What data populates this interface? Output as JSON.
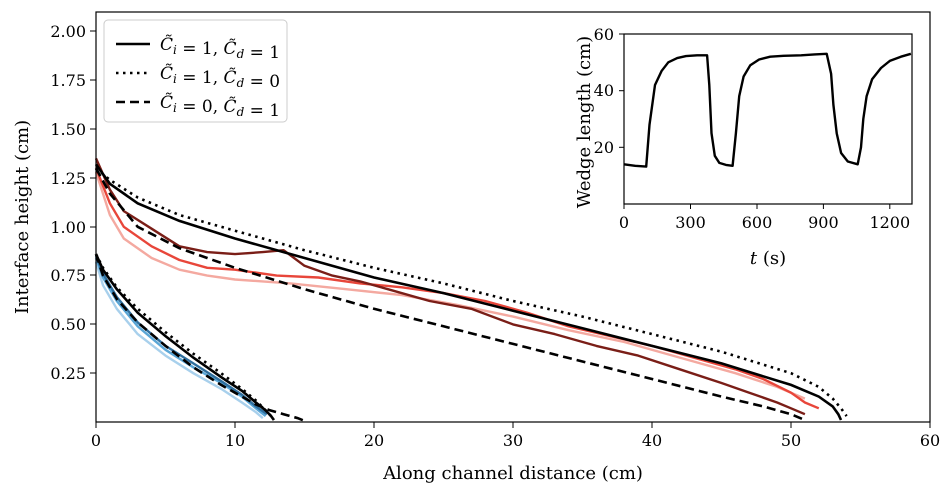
{
  "chart_data": [
    {
      "type": "line",
      "xlabel": "Along channel distance (cm)",
      "ylabel": "Interface height (cm)",
      "xlim": [
        0,
        60
      ],
      "ylim": [
        0,
        2.1
      ],
      "xticks": [
        "0",
        "10",
        "20",
        "30",
        "40",
        "50",
        "60"
      ],
      "yticks": [
        "0.25",
        "0.50",
        "0.75",
        "1.00",
        "1.25",
        "1.50",
        "1.75",
        "2.00"
      ],
      "legend": {
        "placement": "top-left",
        "entries": [
          {
            "label": "C̃i = 1, C̃d = 1",
            "style": "solid"
          },
          {
            "label": "C̃i = 1, C̃d = 0",
            "style": "dotted"
          },
          {
            "label": "C̃i = 0, C̃d = 1",
            "style": "dashed"
          }
        ]
      },
      "colors": {
        "model": "#000000",
        "red_light": "#f4a9a0",
        "red_mid": "#e8463a",
        "red_dark": "#7a1e17",
        "blue_light": "#a8d0ec",
        "blue_mid": "#5aa6d6",
        "blue_dark": "#2f6f9e"
      },
      "series": [
        {
          "style": "solid",
          "group": "large",
          "x": [
            0,
            1,
            3,
            6,
            10,
            15,
            20,
            25,
            30,
            35,
            40,
            45,
            50,
            52,
            53,
            53.4,
            53.6
          ],
          "y": [
            1.32,
            1.22,
            1.12,
            1.03,
            0.94,
            0.84,
            0.74,
            0.66,
            0.57,
            0.48,
            0.39,
            0.3,
            0.19,
            0.13,
            0.08,
            0.04,
            0.01
          ]
        },
        {
          "style": "dotted",
          "group": "large",
          "x": [
            0,
            1,
            3,
            6,
            10,
            15,
            20,
            25,
            30,
            35,
            40,
            45,
            50,
            52,
            53,
            53.6,
            54
          ],
          "y": [
            1.3,
            1.24,
            1.15,
            1.06,
            0.98,
            0.88,
            0.79,
            0.71,
            0.62,
            0.54,
            0.45,
            0.36,
            0.25,
            0.18,
            0.12,
            0.07,
            0.03
          ]
        },
        {
          "style": "dashed",
          "group": "large",
          "x": [
            0,
            1,
            3,
            6,
            10,
            15,
            20,
            25,
            30,
            35,
            40,
            45,
            48,
            50,
            51
          ],
          "y": [
            1.3,
            1.17,
            1.0,
            0.89,
            0.79,
            0.68,
            0.58,
            0.49,
            0.4,
            0.31,
            0.22,
            0.13,
            0.08,
            0.04,
            0.01
          ]
        },
        {
          "style": "solid",
          "group": "small",
          "x": [
            0,
            0.5,
            1.5,
            3,
            5,
            7,
            9,
            10.5,
            11.5,
            12.2,
            12.6,
            12.8
          ],
          "y": [
            0.86,
            0.78,
            0.68,
            0.56,
            0.44,
            0.33,
            0.23,
            0.16,
            0.1,
            0.06,
            0.03,
            0.01
          ]
        },
        {
          "style": "dotted",
          "group": "small",
          "x": [
            0,
            0.5,
            1.5,
            3,
            5,
            7,
            9,
            10.5,
            11.5,
            12.2,
            12.6,
            12.8
          ],
          "y": [
            0.86,
            0.79,
            0.69,
            0.58,
            0.46,
            0.35,
            0.25,
            0.17,
            0.11,
            0.06,
            0.03,
            0.01
          ]
        },
        {
          "style": "dashed",
          "group": "small",
          "x": [
            0,
            0.5,
            1.5,
            3,
            5,
            7,
            9,
            10.5,
            11.5,
            12.5,
            13.5,
            14.5,
            15.2
          ],
          "y": [
            0.86,
            0.75,
            0.63,
            0.51,
            0.39,
            0.28,
            0.19,
            0.13,
            0.09,
            0.06,
            0.04,
            0.02,
            0.0
          ]
        },
        {
          "style": "experiment",
          "color": "red_light",
          "x": [
            0,
            1,
            2,
            4,
            6,
            8,
            10,
            14,
            18,
            22,
            26,
            30,
            34,
            38,
            42,
            46,
            49,
            51
          ],
          "y": [
            1.28,
            1.06,
            0.94,
            0.84,
            0.78,
            0.75,
            0.73,
            0.71,
            0.68,
            0.65,
            0.6,
            0.54,
            0.47,
            0.41,
            0.33,
            0.25,
            0.18,
            0.12
          ]
        },
        {
          "style": "experiment",
          "color": "red_mid",
          "x": [
            0,
            1,
            2,
            4,
            6,
            8,
            10,
            13,
            16,
            19,
            22,
            25,
            28,
            31,
            34,
            37,
            40,
            43,
            46,
            48,
            50,
            51,
            52
          ],
          "y": [
            1.3,
            1.12,
            1.0,
            0.9,
            0.83,
            0.79,
            0.78,
            0.75,
            0.74,
            0.71,
            0.69,
            0.66,
            0.62,
            0.56,
            0.49,
            0.44,
            0.39,
            0.33,
            0.27,
            0.22,
            0.15,
            0.1,
            0.07
          ]
        },
        {
          "style": "experiment",
          "color": "red_dark",
          "x": [
            0,
            1,
            2,
            4,
            6,
            8,
            10,
            12,
            13.5,
            15,
            17,
            19,
            21,
            24,
            27,
            30,
            33,
            36,
            39,
            42,
            45,
            47,
            49,
            50,
            51
          ],
          "y": [
            1.35,
            1.19,
            1.08,
            0.99,
            0.9,
            0.87,
            0.86,
            0.87,
            0.88,
            0.8,
            0.75,
            0.72,
            0.68,
            0.62,
            0.58,
            0.5,
            0.45,
            0.39,
            0.34,
            0.27,
            0.2,
            0.15,
            0.1,
            0.07,
            0.04
          ]
        },
        {
          "style": "experiment",
          "color": "blue_light",
          "x": [
            0,
            0.5,
            1.5,
            3,
            5,
            7,
            9,
            10.5,
            11.5,
            12
          ],
          "y": [
            0.82,
            0.7,
            0.58,
            0.45,
            0.34,
            0.25,
            0.17,
            0.1,
            0.05,
            0.02
          ]
        },
        {
          "style": "experiment",
          "color": "blue_mid",
          "x": [
            0,
            0.5,
            1.5,
            3,
            5,
            7,
            9,
            10.5,
            11.5,
            12.2
          ],
          "y": [
            0.84,
            0.74,
            0.62,
            0.49,
            0.37,
            0.28,
            0.2,
            0.13,
            0.07,
            0.03
          ]
        },
        {
          "style": "experiment",
          "color": "blue_dark",
          "x": [
            0,
            0.5,
            1.5,
            3,
            5,
            7,
            9,
            10.5,
            11.5,
            12.3
          ],
          "y": [
            0.85,
            0.76,
            0.64,
            0.51,
            0.39,
            0.3,
            0.21,
            0.14,
            0.08,
            0.04
          ]
        }
      ]
    },
    {
      "type": "line",
      "placement": "inset top-right",
      "xlabel": "t (s)",
      "ylabel": "Wedge length (cm)",
      "xlim": [
        0,
        1300
      ],
      "ylim": [
        0,
        60
      ],
      "xticks": [
        "0",
        "300",
        "600",
        "900",
        "1200"
      ],
      "yticks": [
        "20",
        "40",
        "60"
      ],
      "series": [
        {
          "color": "#000000",
          "x": [
            0,
            50,
            100,
            115,
            140,
            170,
            200,
            240,
            280,
            330,
            375,
            385,
            395,
            410,
            430,
            460,
            490,
            505,
            520,
            540,
            570,
            610,
            660,
            720,
            800,
            860,
            915,
            935,
            945,
            960,
            980,
            1010,
            1055,
            1070,
            1080,
            1095,
            1120,
            1160,
            1200,
            1250,
            1295
          ],
          "y": [
            14,
            13.5,
            13.2,
            28,
            42,
            47,
            50,
            51.5,
            52.2,
            52.5,
            52.5,
            42,
            25,
            17,
            14.5,
            13.8,
            13.5,
            25,
            38,
            45,
            49,
            51,
            52,
            52.3,
            52.5,
            52.8,
            53,
            46,
            35,
            25,
            18,
            15,
            14,
            20,
            30,
            38,
            44,
            48,
            50.5,
            52,
            53
          ]
        }
      ]
    }
  ]
}
